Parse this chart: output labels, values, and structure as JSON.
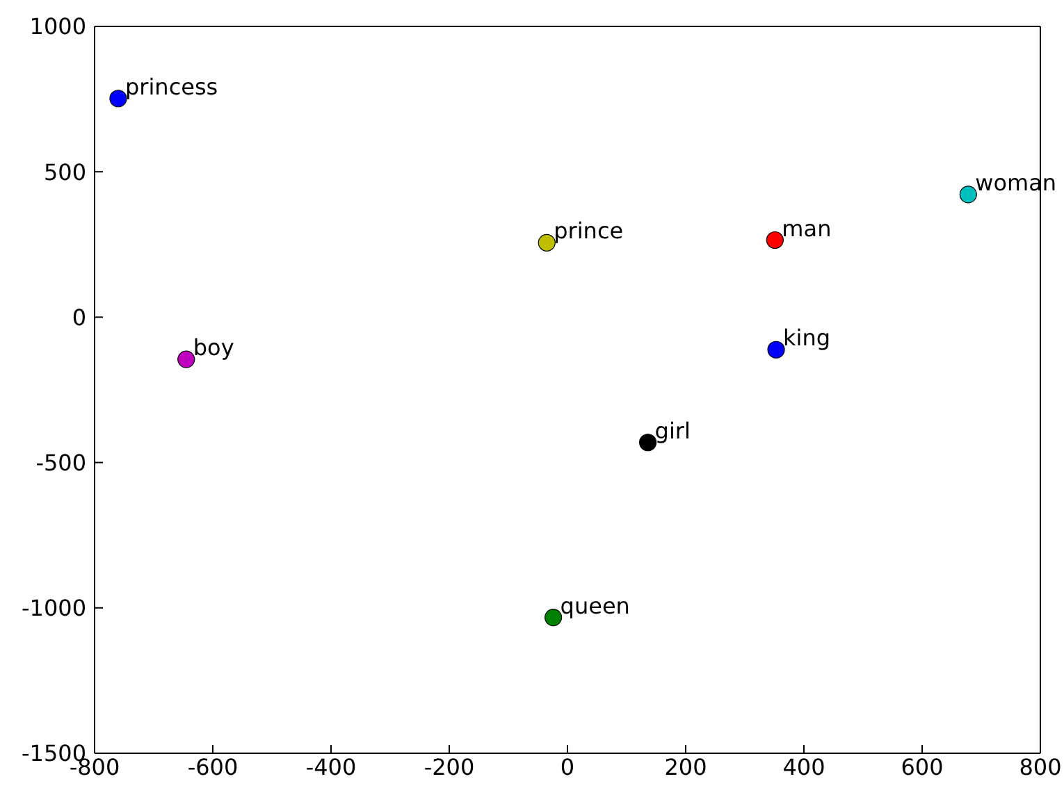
{
  "chart_data": {
    "type": "scatter",
    "marker": "circle",
    "xlim": [
      -800,
      800
    ],
    "xticks": [
      -800,
      -600,
      -400,
      -200,
      0,
      200,
      400,
      600,
      800
    ],
    "ylim": [
      -1500,
      1000
    ],
    "yticks": [
      -1500,
      -1000,
      -500,
      0,
      500,
      1000
    ],
    "series": [
      {
        "x": [
          -760,
          -35,
          351,
          678,
          353,
          -645,
          136,
          -24
        ],
        "values": [
          752,
          256,
          265,
          422,
          -112,
          -145,
          -431,
          -1033
        ],
        "colors": [
          "#0000ff",
          "#bfbf00",
          "#ff0000",
          "#00bfbf",
          "#0000ff",
          "#bf00bf",
          "#000000",
          "#008000"
        ]
      }
    ],
    "annotations": [
      {
        "text": "princess",
        "x": -760,
        "y": 752
      },
      {
        "text": "prince",
        "x": -35,
        "y": 256
      },
      {
        "text": "man",
        "x": 351,
        "y": 265
      },
      {
        "text": "woman",
        "x": 678,
        "y": 422
      },
      {
        "text": "king",
        "x": 353,
        "y": -112
      },
      {
        "text": "boy",
        "x": -645,
        "y": -145
      },
      {
        "text": "girl",
        "x": 136,
        "y": -431
      },
      {
        "text": "queen",
        "x": -24,
        "y": -1033
      }
    ]
  }
}
